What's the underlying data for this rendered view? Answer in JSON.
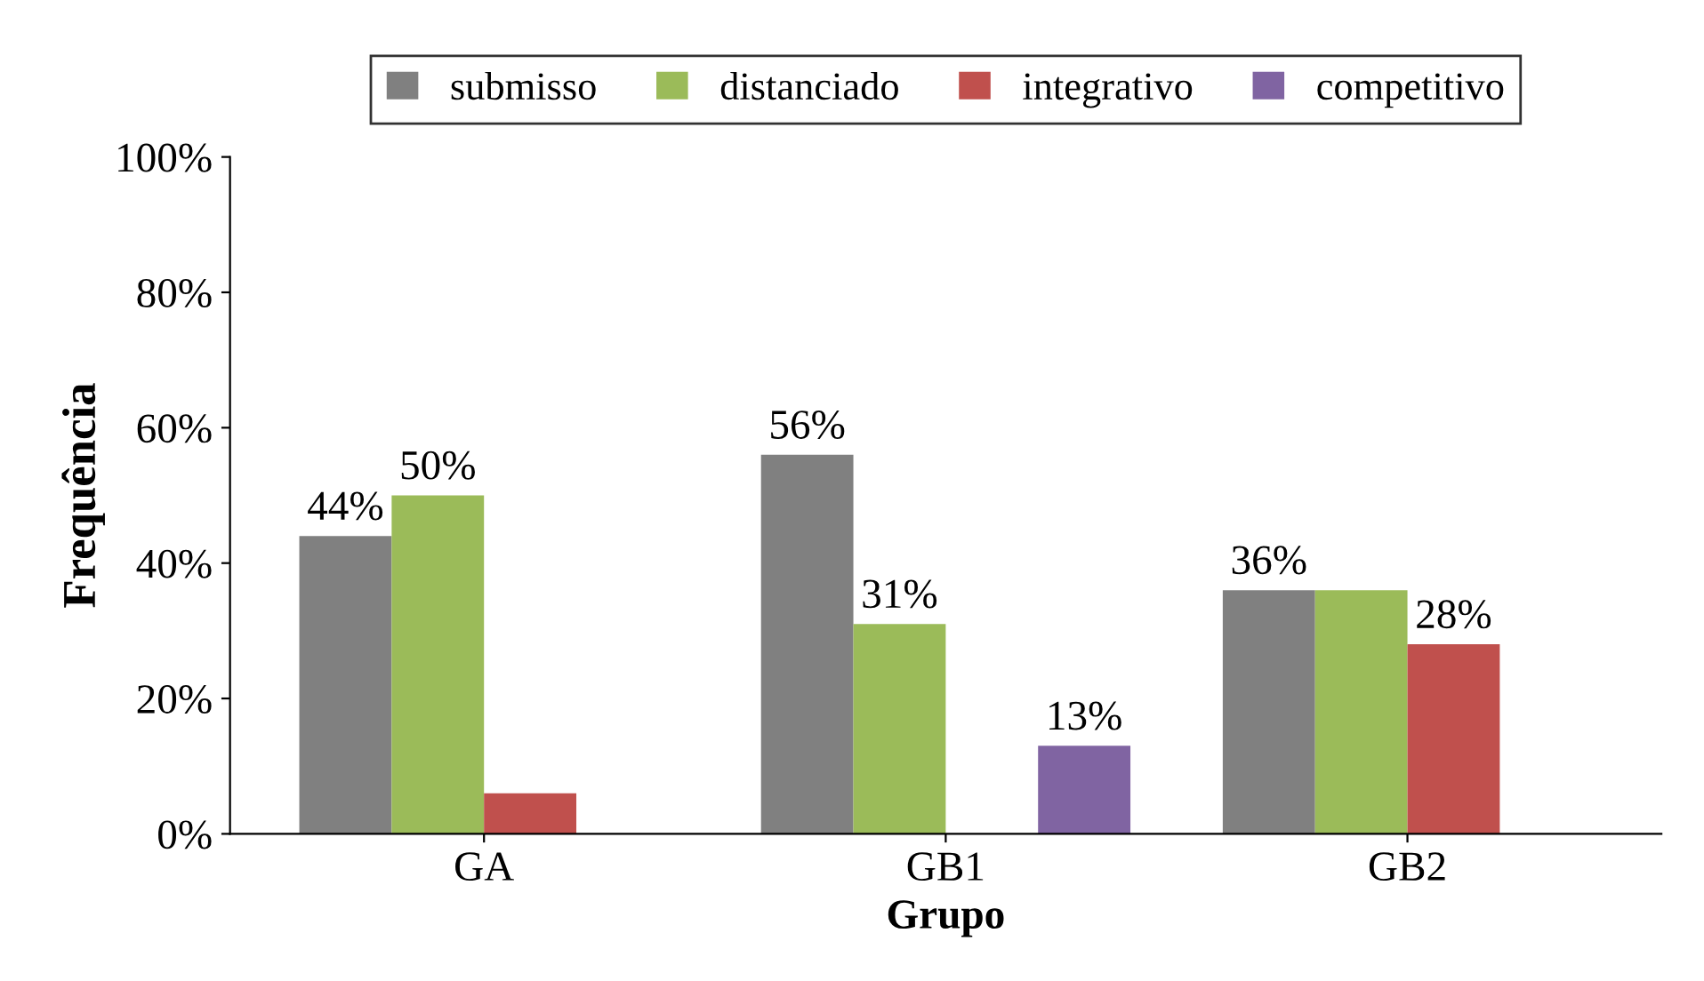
{
  "chart_data": {
    "type": "bar",
    "xlabel": "Grupo",
    "ylabel": "Frequência",
    "categories": [
      "GA",
      "GB1",
      "GB2"
    ],
    "series": [
      {
        "name": "submisso",
        "color": "#808080",
        "values": [
          44,
          56,
          36
        ],
        "value_labels": [
          "44%",
          "56%",
          "36%"
        ]
      },
      {
        "name": "distanciado",
        "color": "#9bbb59",
        "values": [
          50,
          31,
          36
        ],
        "value_labels": [
          "50%",
          "31%",
          null
        ]
      },
      {
        "name": "integrativo",
        "color": "#c0504d",
        "values": [
          6,
          0,
          28
        ],
        "value_labels": [
          null,
          null,
          "28%"
        ]
      },
      {
        "name": "competitivo",
        "color": "#8064a2",
        "values": [
          0,
          13,
          0
        ],
        "value_labels": [
          null,
          "13%",
          null
        ]
      }
    ],
    "ylim": [
      0,
      100
    ],
    "yticks": [
      {
        "value": 0,
        "label": "0%"
      },
      {
        "value": 20,
        "label": "20%"
      },
      {
        "value": 40,
        "label": "40%"
      },
      {
        "value": 60,
        "label": "60%"
      },
      {
        "value": 80,
        "label": "80%"
      },
      {
        "value": 100,
        "label": "100%"
      }
    ],
    "grid": false,
    "legend": "top"
  }
}
